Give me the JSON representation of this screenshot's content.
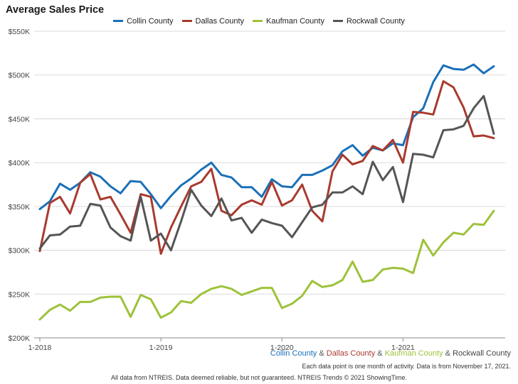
{
  "chart_data": {
    "type": "line",
    "title": "Average Sales Price",
    "xlabel": "",
    "ylabel": "",
    "ylim": [
      200000,
      550000
    ],
    "yticks": [
      {
        "value": 200000,
        "label": "$200K"
      },
      {
        "value": 250000,
        "label": "$250K"
      },
      {
        "value": 300000,
        "label": "$300K"
      },
      {
        "value": 350000,
        "label": "$350K"
      },
      {
        "value": 400000,
        "label": "$400K"
      },
      {
        "value": 450000,
        "label": "$450K"
      },
      {
        "value": 500000,
        "label": "$500K"
      },
      {
        "value": 550000,
        "label": "$550K"
      }
    ],
    "xticks": [
      {
        "index": 0,
        "label": "1-2018"
      },
      {
        "index": 12,
        "label": "1-2019"
      },
      {
        "index": 24,
        "label": "1-2020"
      },
      {
        "index": 36,
        "label": "1-2021"
      }
    ],
    "x": [
      "1-2018",
      "2-2018",
      "3-2018",
      "4-2018",
      "5-2018",
      "6-2018",
      "7-2018",
      "8-2018",
      "9-2018",
      "10-2018",
      "11-2018",
      "12-2018",
      "1-2019",
      "2-2019",
      "3-2019",
      "4-2019",
      "5-2019",
      "6-2019",
      "7-2019",
      "8-2019",
      "9-2019",
      "10-2019",
      "11-2019",
      "12-2019",
      "1-2020",
      "2-2020",
      "3-2020",
      "4-2020",
      "5-2020",
      "6-2020",
      "7-2020",
      "8-2020",
      "9-2020",
      "10-2020",
      "11-2020",
      "12-2020",
      "1-2021",
      "2-2021",
      "3-2021",
      "4-2021",
      "5-2021",
      "6-2021",
      "7-2021",
      "8-2021",
      "9-2021",
      "10-2021"
    ],
    "grid": true,
    "legend_position": "top",
    "series": [
      {
        "name": "Collin County",
        "color": "#1a70b8",
        "values": [
          347000,
          356000,
          376000,
          369000,
          377000,
          389000,
          384000,
          373000,
          365000,
          379000,
          378000,
          364000,
          348000,
          362000,
          374000,
          382000,
          392000,
          400000,
          386000,
          383000,
          372000,
          372000,
          361000,
          381000,
          373000,
          372000,
          386000,
          386000,
          391000,
          397000,
          413000,
          420000,
          408000,
          417000,
          414000,
          422000,
          420000,
          452000,
          462000,
          492000,
          511000,
          507000,
          506000,
          512000,
          502000,
          510000
        ]
      },
      {
        "name": "Dallas County",
        "color": "#a93a2e",
        "values": [
          299000,
          354000,
          361000,
          342000,
          377000,
          387000,
          358000,
          361000,
          341000,
          320000,
          364000,
          361000,
          296000,
          326000,
          350000,
          373000,
          378000,
          393000,
          345000,
          340000,
          352000,
          357000,
          352000,
          378000,
          351000,
          357000,
          375000,
          345000,
          333000,
          390000,
          409000,
          398000,
          402000,
          419000,
          414000,
          426000,
          400000,
          458000,
          457000,
          455000,
          493000,
          486000,
          463000,
          430000,
          431000,
          428000
        ]
      },
      {
        "name": "Kaufman County",
        "color": "#9dc23a",
        "values": [
          221000,
          232000,
          238000,
          231000,
          241000,
          241000,
          246000,
          247000,
          247000,
          224000,
          249000,
          244000,
          223000,
          229000,
          242000,
          240000,
          250000,
          256000,
          259000,
          256000,
          249000,
          253000,
          257000,
          257000,
          234000,
          239000,
          248000,
          265000,
          258000,
          260000,
          266000,
          287000,
          264000,
          266000,
          278000,
          280000,
          279000,
          274000,
          312000,
          294000,
          309000,
          320000,
          318000,
          330000,
          329000,
          345000
        ]
      },
      {
        "name": "Rockwall County",
        "color": "#555555",
        "values": [
          302000,
          317000,
          318000,
          327000,
          328000,
          353000,
          351000,
          326000,
          316000,
          311000,
          361000,
          311000,
          319000,
          300000,
          333000,
          369000,
          351000,
          339000,
          359000,
          334000,
          337000,
          320000,
          335000,
          331000,
          328000,
          315000,
          332000,
          349000,
          352000,
          366000,
          366000,
          373000,
          364000,
          401000,
          380000,
          395000,
          355000,
          410000,
          409000,
          406000,
          437000,
          438000,
          442000,
          462000,
          476000,
          433000
        ]
      }
    ]
  },
  "credit": {
    "parts": [
      {
        "text": "Collin County",
        "color": "#1a70b8"
      },
      {
        "text": " & ",
        "color": "#555555"
      },
      {
        "text": "Dallas County",
        "color": "#a93a2e"
      },
      {
        "text": " & ",
        "color": "#555555"
      },
      {
        "text": "Kaufman County",
        "color": "#9dc23a"
      },
      {
        "text": " & ",
        "color": "#555555"
      },
      {
        "text": "Rockwall County",
        "color": "#444444"
      }
    ]
  },
  "note": "Each data point is one month of activity. Data is from November 17, 2021.",
  "footer": "All data from NTREIS. Data deemed reliable, but not guaranteed. NTREIS Trends © 2021 ShowingTime."
}
